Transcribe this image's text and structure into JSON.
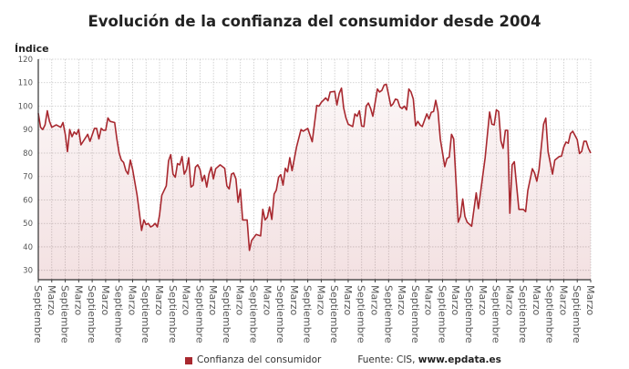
{
  "chart_data": {
    "type": "area",
    "title": "Evolución de la confianza del consumidor desde 2004",
    "ylabel": "Índice",
    "xlabel": "",
    "ylim": [
      26,
      120
    ],
    "yticks": [
      30,
      40,
      50,
      60,
      70,
      80,
      90,
      100,
      110,
      120
    ],
    "grid": true,
    "legend_position": "bottom",
    "x_tick_labels": [
      "Septiembre",
      "Marzo",
      "Septiembre",
      "Marzo",
      "Septiembre",
      "Marzo",
      "Septiembre",
      "Marzo",
      "Septiembre",
      "Marzo",
      "Septiembre",
      "Marzo",
      "Septiembre",
      "Marzo",
      "Septiembre",
      "Marzo",
      "Septiembre",
      "Marzo",
      "Septiembre",
      "Marzo",
      "Septiembre",
      "Marzo",
      "Septiembre",
      "Marzo",
      "Septiembre",
      "Marzo",
      "Septiembre",
      "Marzo",
      "Septiembre",
      "Marzo",
      "Septiembre",
      "Marzo",
      "Septiembre",
      "Marzo",
      "Septiembre",
      "Marzo",
      "Septiembre",
      "Marzo",
      "Septiembre",
      "Marzo",
      "Septiembre",
      "Marzo"
    ],
    "x_range": [
      "2004-09",
      "2025-03"
    ],
    "series": [
      {
        "name": "Confianza del consumidor",
        "color": "#a8282f",
        "points": [
          [
            "2004-09",
            97
          ],
          [
            "2004-10",
            91
          ],
          [
            "2004-11",
            90
          ],
          [
            "2004-12",
            92
          ],
          [
            "2005-01",
            98
          ],
          [
            "2005-02",
            93.5
          ],
          [
            "2005-03",
            91
          ],
          [
            "2005-05",
            92
          ],
          [
            "2005-07",
            91
          ],
          [
            "2005-08",
            93
          ],
          [
            "2005-09",
            88
          ],
          [
            "2005-10",
            80.6
          ],
          [
            "2005-11",
            90
          ],
          [
            "2005-12",
            87
          ],
          [
            "2006-01",
            89
          ],
          [
            "2006-02",
            88
          ],
          [
            "2006-03",
            90
          ],
          [
            "2006-04",
            83.5
          ],
          [
            "2006-07",
            88
          ],
          [
            "2006-08",
            85
          ],
          [
            "2006-10",
            90.5
          ],
          [
            "2006-11",
            90.5
          ],
          [
            "2006-12",
            86
          ],
          [
            "2007-01",
            90.5
          ],
          [
            "2007-02",
            89.7
          ],
          [
            "2007-03",
            89.7
          ],
          [
            "2007-04",
            95
          ],
          [
            "2007-05",
            93.5
          ],
          [
            "2007-07",
            93
          ],
          [
            "2007-08",
            86
          ],
          [
            "2007-09",
            80
          ],
          [
            "2007-10",
            77
          ],
          [
            "2007-11",
            76
          ],
          [
            "2007-12",
            72.5
          ],
          [
            "2008-01",
            71
          ],
          [
            "2008-02",
            77
          ],
          [
            "2008-03",
            73
          ],
          [
            "2008-05",
            62
          ],
          [
            "2008-06",
            54.5
          ],
          [
            "2008-07",
            47
          ],
          [
            "2008-08",
            51.5
          ],
          [
            "2008-09",
            49.5
          ],
          [
            "2008-10",
            50
          ],
          [
            "2008-11",
            48.5
          ],
          [
            "2008-12",
            49
          ],
          [
            "2009-01",
            50
          ],
          [
            "2009-02",
            48.5
          ],
          [
            "2009-03",
            53.5
          ],
          [
            "2009-04",
            62
          ],
          [
            "2009-06",
            66
          ],
          [
            "2009-07",
            76.7
          ],
          [
            "2009-08",
            79.3
          ],
          [
            "2009-09",
            71
          ],
          [
            "2009-10",
            69.7
          ],
          [
            "2009-11",
            75.5
          ],
          [
            "2009-12",
            75
          ],
          [
            "2010-01",
            78.5
          ],
          [
            "2010-02",
            71
          ],
          [
            "2010-03",
            73
          ],
          [
            "2010-04",
            78
          ],
          [
            "2010-05",
            65.5
          ],
          [
            "2010-06",
            66.3
          ],
          [
            "2010-07",
            74
          ],
          [
            "2010-08",
            75
          ],
          [
            "2010-09",
            73
          ],
          [
            "2010-10",
            68
          ],
          [
            "2010-11",
            70.5
          ],
          [
            "2010-12",
            65.5
          ],
          [
            "2011-01",
            71
          ],
          [
            "2011-02",
            74
          ],
          [
            "2011-03",
            69
          ],
          [
            "2011-04",
            73.3
          ],
          [
            "2011-06",
            75
          ],
          [
            "2011-08",
            73.5
          ],
          [
            "2011-09",
            66
          ],
          [
            "2011-10",
            64.7
          ],
          [
            "2011-11",
            71
          ],
          [
            "2011-12",
            71.5
          ],
          [
            "2012-01",
            69
          ],
          [
            "2012-02",
            59
          ],
          [
            "2012-03",
            64.5
          ],
          [
            "2012-04",
            51.5
          ],
          [
            "2012-06",
            51.5
          ],
          [
            "2012-07",
            38.5
          ],
          [
            "2012-08",
            42.7
          ],
          [
            "2012-10",
            45.3
          ],
          [
            "2012-11",
            45
          ],
          [
            "2012-12",
            44.7
          ],
          [
            "2013-01",
            56
          ],
          [
            "2013-02",
            51.5
          ],
          [
            "2013-03",
            52.7
          ],
          [
            "2013-04",
            57
          ],
          [
            "2013-05",
            51.7
          ],
          [
            "2013-06",
            62.5
          ],
          [
            "2013-07",
            64.2
          ],
          [
            "2013-08",
            69.7
          ],
          [
            "2013-09",
            70.8
          ],
          [
            "2013-10",
            66.3
          ],
          [
            "2013-11",
            73.5
          ],
          [
            "2013-12",
            72
          ],
          [
            "2014-01",
            78
          ],
          [
            "2014-02",
            72.5
          ],
          [
            "2014-04",
            82.6
          ],
          [
            "2014-06",
            90
          ],
          [
            "2014-07",
            89.3
          ],
          [
            "2014-09",
            90.5
          ],
          [
            "2014-11",
            84.8
          ],
          [
            "2015-01",
            100.3
          ],
          [
            "2015-02",
            100
          ],
          [
            "2015-03",
            101.6
          ],
          [
            "2015-05",
            103.5
          ],
          [
            "2015-06",
            102.3
          ],
          [
            "2015-07",
            106
          ],
          [
            "2015-09",
            106.3
          ],
          [
            "2015-10",
            100.5
          ],
          [
            "2015-11",
            105.4
          ],
          [
            "2015-12",
            107.7
          ],
          [
            "2016-01",
            99.2
          ],
          [
            "2016-02",
            95
          ],
          [
            "2016-03",
            92.3
          ],
          [
            "2016-05",
            91.3
          ],
          [
            "2016-06",
            96.7
          ],
          [
            "2016-07",
            95.7
          ],
          [
            "2016-08",
            98
          ],
          [
            "2016-09",
            91.5
          ],
          [
            "2016-10",
            91.3
          ],
          [
            "2016-11",
            100
          ],
          [
            "2016-12",
            101.3
          ],
          [
            "2017-01",
            99
          ],
          [
            "2017-02",
            95.7
          ],
          [
            "2017-04",
            107.3
          ],
          [
            "2017-05",
            106
          ],
          [
            "2017-06",
            106.7
          ],
          [
            "2017-07",
            109
          ],
          [
            "2017-08",
            109.3
          ],
          [
            "2017-09",
            104.8
          ],
          [
            "2017-10",
            100
          ],
          [
            "2017-11",
            101
          ],
          [
            "2017-12",
            103
          ],
          [
            "2018-01",
            102.7
          ],
          [
            "2018-02",
            99.7
          ],
          [
            "2018-03",
            99
          ],
          [
            "2018-04",
            100
          ],
          [
            "2018-05",
            98.4
          ],
          [
            "2018-06",
            107.3
          ],
          [
            "2018-07",
            106
          ],
          [
            "2018-08",
            103
          ],
          [
            "2018-09",
            91.6
          ],
          [
            "2018-10",
            93.5
          ],
          [
            "2018-11",
            92
          ],
          [
            "2018-12",
            91.3
          ],
          [
            "2019-02",
            96.7
          ],
          [
            "2019-03",
            94.5
          ],
          [
            "2019-04",
            97.4
          ],
          [
            "2019-05",
            97.7
          ],
          [
            "2019-06",
            102.5
          ],
          [
            "2019-07",
            97.7
          ],
          [
            "2019-08",
            86
          ],
          [
            "2019-10",
            74.2
          ],
          [
            "2019-11",
            77.7
          ],
          [
            "2019-12",
            78.3
          ],
          [
            "2020-01",
            88
          ],
          [
            "2020-02",
            86
          ],
          [
            "2020-04",
            50.5
          ],
          [
            "2020-05",
            53
          ],
          [
            "2020-06",
            60.4
          ],
          [
            "2020-07",
            53
          ],
          [
            "2020-08",
            50.5
          ],
          [
            "2020-10",
            48.8
          ],
          [
            "2020-12",
            63
          ],
          [
            "2021-01",
            56.3
          ],
          [
            "2021-03",
            71
          ],
          [
            "2021-04",
            78
          ],
          [
            "2021-06",
            97.5
          ],
          [
            "2021-07",
            92.3
          ],
          [
            "2021-08",
            92
          ],
          [
            "2021-09",
            98.4
          ],
          [
            "2021-10",
            97.7
          ],
          [
            "2021-11",
            85.2
          ],
          [
            "2021-12",
            82
          ],
          [
            "2022-01",
            89.7
          ],
          [
            "2022-02",
            89.7
          ],
          [
            "2022-03",
            54.3
          ],
          [
            "2022-04",
            75
          ],
          [
            "2022-05",
            76.3
          ],
          [
            "2022-07",
            56
          ],
          [
            "2022-09",
            56
          ],
          [
            "2022-10",
            55
          ],
          [
            "2022-11",
            64
          ],
          [
            "2023-01",
            73.3
          ],
          [
            "2023-02",
            71.5
          ],
          [
            "2023-03",
            68
          ],
          [
            "2023-04",
            73
          ],
          [
            "2023-06",
            92.3
          ],
          [
            "2023-07",
            94.9
          ],
          [
            "2023-08",
            80.7
          ],
          [
            "2023-10",
            71
          ],
          [
            "2023-11",
            77
          ],
          [
            "2024-01",
            78.5
          ],
          [
            "2024-02",
            78.7
          ],
          [
            "2024-03",
            82.5
          ],
          [
            "2024-04",
            84.7
          ],
          [
            "2024-05",
            84.2
          ],
          [
            "2024-06",
            88.3
          ],
          [
            "2024-07",
            89.3
          ],
          [
            "2024-09",
            85.7
          ],
          [
            "2024-10",
            79.8
          ],
          [
            "2024-11",
            80.7
          ],
          [
            "2024-12",
            85
          ],
          [
            "2025-01",
            85
          ],
          [
            "2025-02",
            82
          ],
          [
            "2025-03",
            80
          ]
        ]
      }
    ]
  },
  "legend": {
    "label": "Confianza del consumidor",
    "color": "#a8282f"
  },
  "source": {
    "prefix": "Fuente: CIS, ",
    "site": "www.epdata.es"
  }
}
